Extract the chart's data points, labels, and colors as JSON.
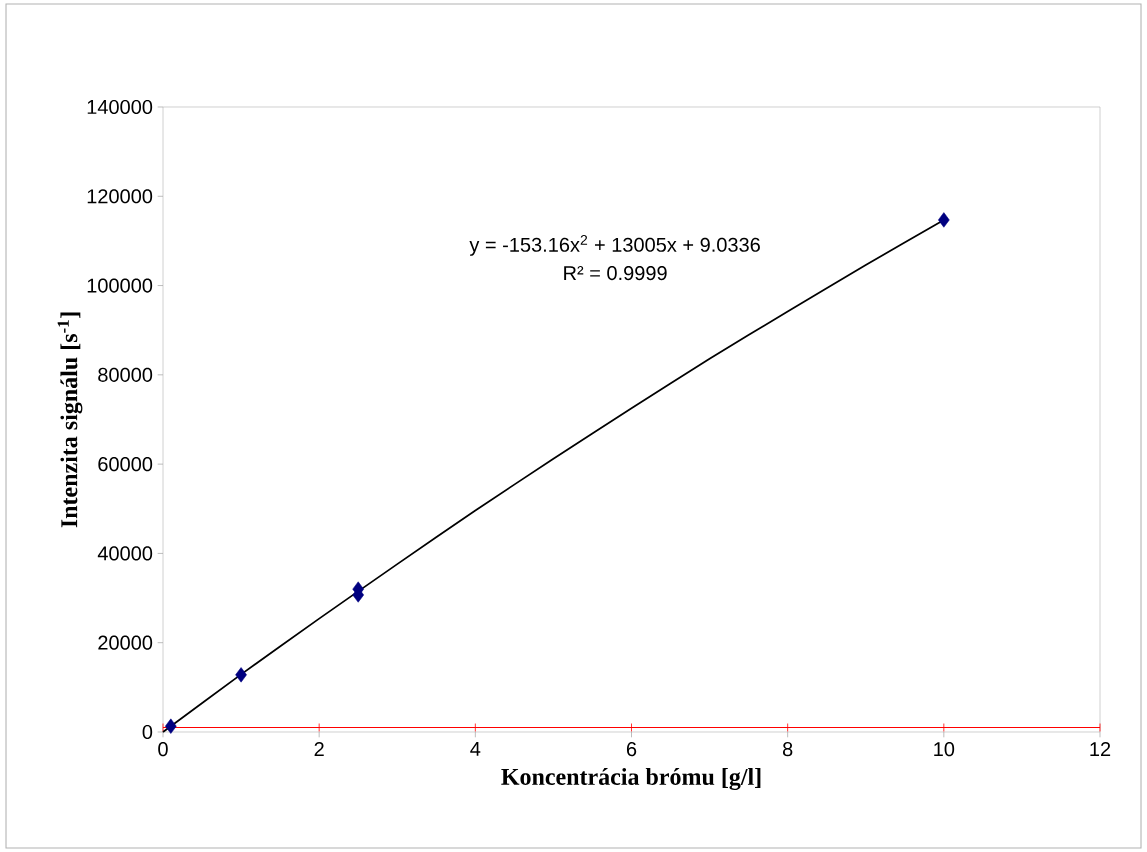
{
  "chart_data": {
    "type": "scatter",
    "xlabel": "Koncentrácia brómu [g/l]",
    "ylabel": "Intenzita signálu [s$^{-1}$]",
    "series": [
      {
        "color": "#000080",
        "marker": "diamond",
        "x": [
          0.1,
          1,
          2.5,
          2.5,
          10
        ],
        "values": [
          1300,
          12800,
          32000,
          30700,
          114700
        ]
      },
      {
        "type": "line",
        "color": "#000000",
        "marker": "none",
        "line_style": "solid",
        "x": [
          0,
          1,
          2,
          3,
          4,
          5,
          6,
          7,
          8,
          9,
          10
        ],
        "values": [
          0,
          12900,
          25400,
          37600,
          49600,
          61200,
          72500,
          83600,
          94200,
          104600,
          114700
        ]
      }
    ],
    "annotations": [
      "y = -153.16x$^{2}$ + 13005x + 9.0336",
      "R² = 0.9999"
    ],
    "ref_lines": [
      {
        "axis": "y",
        "value": 1000,
        "color": "#ff0000"
      }
    ],
    "xlim": [
      0,
      12
    ],
    "xticks": [
      0,
      2,
      4,
      6,
      8,
      10,
      12
    ],
    "ylim": [
      0,
      140000
    ],
    "yticks": [
      0,
      20000,
      40000,
      60000,
      80000,
      100000,
      120000,
      140000
    ],
    "grid": false
  }
}
